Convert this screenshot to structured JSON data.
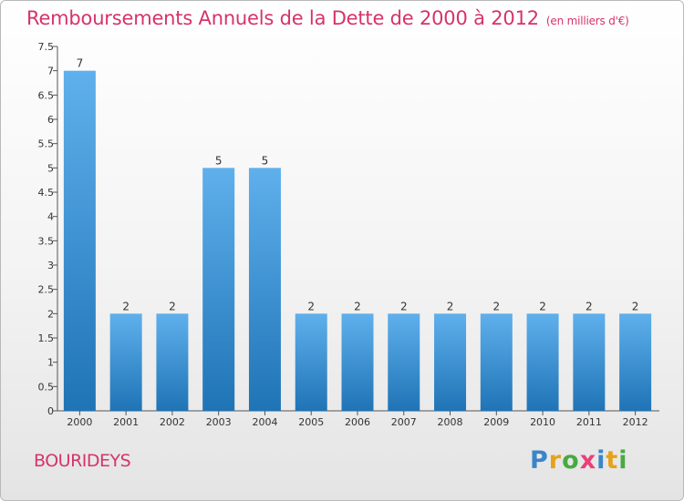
{
  "title": "Remboursements Annuels de la Dette de 2000 à 2012",
  "title_unit": "(en milliers d'€)",
  "commune": "BOURIDEYS",
  "logo": {
    "text": "Proxiti",
    "letters": [
      {
        "char": "P",
        "color": "#3a86c8"
      },
      {
        "char": "r",
        "color": "#e6a21a"
      },
      {
        "char": "o",
        "color": "#49a942"
      },
      {
        "char": "x",
        "color": "#e8417a"
      },
      {
        "char": "i",
        "color": "#3a86c8"
      },
      {
        "char": "t",
        "color": "#e6a21a"
      },
      {
        "char": "i",
        "color": "#49a942"
      }
    ]
  },
  "colors": {
    "bar_light": "#5fb0ec",
    "bar_dark": "#1f74b6",
    "title": "#d6336c"
  },
  "chart_data": {
    "type": "bar",
    "categories": [
      "2000",
      "2001",
      "2002",
      "2003",
      "2004",
      "2005",
      "2006",
      "2007",
      "2008",
      "2009",
      "2010",
      "2011",
      "2012"
    ],
    "values": [
      7,
      2,
      2,
      5,
      5,
      2,
      2,
      2,
      2,
      2,
      2,
      2,
      2
    ],
    "data_labels": [
      "7",
      "2",
      "2",
      "5",
      "5",
      "2",
      "2",
      "2",
      "2",
      "2",
      "2",
      "2",
      "2"
    ],
    "title": "Remboursements Annuels de la Dette de 2000 à 2012",
    "xlabel": "",
    "ylabel": "",
    "ylim": [
      0,
      7.5
    ],
    "y_ticks": [
      {
        "value": 0,
        "label": "0"
      },
      {
        "value": 0.5,
        "label": "0.5"
      },
      {
        "value": 1,
        "label": "1"
      },
      {
        "value": 1.5,
        "label": "1.5"
      },
      {
        "value": 2,
        "label": "2"
      },
      {
        "value": 2.5,
        "label": "2.5"
      },
      {
        "value": 3,
        "label": "3"
      },
      {
        "value": 3.5,
        "label": "3.5"
      },
      {
        "value": 4,
        "label": "4"
      },
      {
        "value": 4.5,
        "label": "4.5"
      },
      {
        "value": 5,
        "label": "5"
      },
      {
        "value": 5.5,
        "label": "5.5"
      },
      {
        "value": 6,
        "label": "6"
      },
      {
        "value": 6.5,
        "label": "6.5"
      },
      {
        "value": 7,
        "label": "7"
      },
      {
        "value": 7.5,
        "label": "7.5"
      }
    ],
    "grid": false,
    "legend": "none"
  }
}
